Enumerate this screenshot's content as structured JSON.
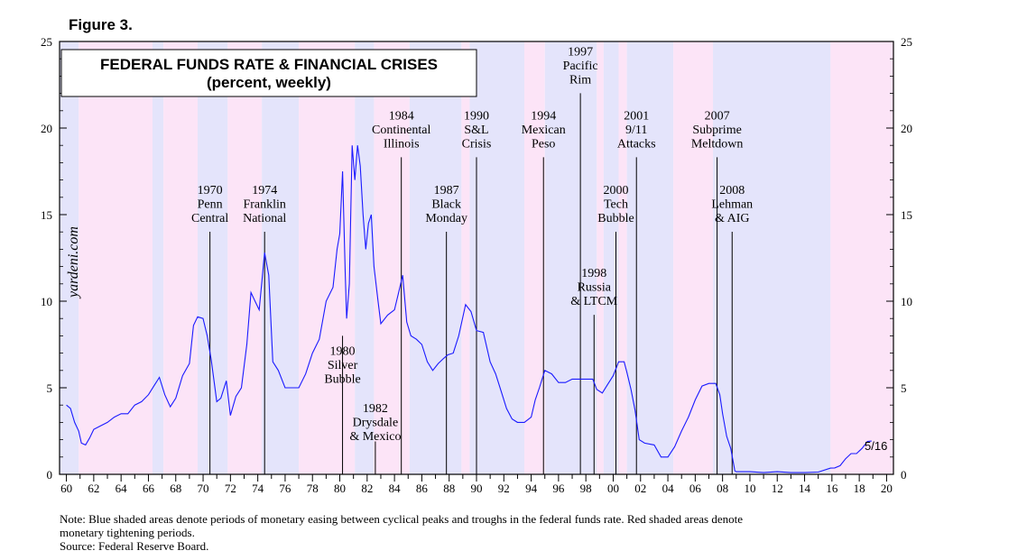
{
  "figure_label": "Figure 3.",
  "chart_data": {
    "type": "line",
    "title": "FEDERAL FUNDS RATE & FINANCIAL CRISES",
    "subtitle": "(percent, weekly)",
    "xlabel": "",
    "ylabel": "",
    "xlim": [
      1959.5,
      2020.5
    ],
    "ylim": [
      0,
      25
    ],
    "y_ticks": [
      0,
      5,
      10,
      15,
      20,
      25
    ],
    "x_tick_labels": [
      "60",
      "62",
      "64",
      "66",
      "68",
      "70",
      "72",
      "74",
      "76",
      "78",
      "80",
      "82",
      "84",
      "86",
      "88",
      "90",
      "92",
      "94",
      "96",
      "98",
      "00",
      "02",
      "04",
      "06",
      "08",
      "10",
      "12",
      "14",
      "16",
      "18",
      "20"
    ],
    "x_tick_values": [
      1960,
      1962,
      1964,
      1966,
      1968,
      1970,
      1972,
      1974,
      1976,
      1978,
      1980,
      1982,
      1984,
      1986,
      1988,
      1990,
      1992,
      1994,
      1996,
      1998,
      2000,
      2002,
      2004,
      2006,
      2008,
      2010,
      2012,
      2014,
      2016,
      2018,
      2020
    ],
    "grid": false,
    "end_label": "5/16",
    "series": [
      {
        "color": "#1a1aff",
        "x": [
          1960.0,
          1960.3,
          1960.6,
          1960.9,
          1961.1,
          1961.4,
          1961.7,
          1962.0,
          1962.5,
          1963.0,
          1963.5,
          1964.0,
          1964.5,
          1965.0,
          1965.5,
          1966.0,
          1966.4,
          1966.8,
          1967.2,
          1967.6,
          1968.0,
          1968.5,
          1969.0,
          1969.3,
          1969.6,
          1970.0,
          1970.3,
          1970.6,
          1971.0,
          1971.3,
          1971.7,
          1972.0,
          1972.4,
          1972.8,
          1973.2,
          1973.5,
          1973.8,
          1974.1,
          1974.5,
          1974.8,
          1975.1,
          1975.5,
          1976.0,
          1976.5,
          1977.0,
          1977.5,
          1978.0,
          1978.5,
          1979.0,
          1979.5,
          1979.8,
          1980.0,
          1980.2,
          1980.4,
          1980.5,
          1980.7,
          1980.9,
          1981.1,
          1981.3,
          1981.5,
          1981.7,
          1981.9,
          1982.1,
          1982.3,
          1982.5,
          1982.8,
          1983.0,
          1983.5,
          1984.0,
          1984.3,
          1984.6,
          1984.9,
          1985.2,
          1985.6,
          1986.0,
          1986.4,
          1986.8,
          1987.2,
          1987.6,
          1987.9,
          1988.3,
          1988.7,
          1989.2,
          1989.6,
          1990.0,
          1990.5,
          1991.0,
          1991.4,
          1991.8,
          1992.2,
          1992.6,
          1993.0,
          1993.5,
          1994.0,
          1994.3,
          1994.6,
          1995.0,
          1995.5,
          1996.0,
          1996.5,
          1997.0,
          1997.5,
          1998.0,
          1998.5,
          1998.8,
          1999.2,
          1999.6,
          2000.0,
          2000.4,
          2000.8,
          2001.0,
          2001.3,
          2001.6,
          2001.9,
          2002.3,
          2003.0,
          2003.5,
          2004.0,
          2004.5,
          2005.0,
          2005.5,
          2006.0,
          2006.5,
          2007.0,
          2007.5,
          2007.8,
          2008.0,
          2008.3,
          2008.6,
          2008.9,
          2009.0,
          2010.0,
          2011.0,
          2012.0,
          2013.0,
          2014.0,
          2015.0,
          2015.9,
          2016.2,
          2016.6,
          2017.0,
          2017.4,
          2017.8,
          2018.2,
          2018.6,
          2018.9
        ],
        "y": [
          4.0,
          3.8,
          3.0,
          2.5,
          1.8,
          1.7,
          2.1,
          2.6,
          2.8,
          3.0,
          3.3,
          3.5,
          3.5,
          4.0,
          4.2,
          4.6,
          5.1,
          5.6,
          4.6,
          3.9,
          4.4,
          5.7,
          6.4,
          8.6,
          9.1,
          9.0,
          8.0,
          6.6,
          4.2,
          4.4,
          5.4,
          3.4,
          4.5,
          5.0,
          7.5,
          10.5,
          10.0,
          9.5,
          12.8,
          11.5,
          6.5,
          6.0,
          5.0,
          5.0,
          5.0,
          5.8,
          7.0,
          7.8,
          10.0,
          10.8,
          13.0,
          13.9,
          17.5,
          11.5,
          9.0,
          11.0,
          19.0,
          17.0,
          19.0,
          17.8,
          15.0,
          13.0,
          14.5,
          15.0,
          12.0,
          10.0,
          8.7,
          9.2,
          9.5,
          10.5,
          11.5,
          8.8,
          8.0,
          7.8,
          7.5,
          6.5,
          6.0,
          6.4,
          6.7,
          6.9,
          7.0,
          8.0,
          9.8,
          9.4,
          8.3,
          8.2,
          6.5,
          5.8,
          4.8,
          3.8,
          3.2,
          3.0,
          3.0,
          3.3,
          4.3,
          5.0,
          6.0,
          5.8,
          5.3,
          5.3,
          5.5,
          5.5,
          5.5,
          5.5,
          4.9,
          4.7,
          5.2,
          5.7,
          6.5,
          6.5,
          5.9,
          4.9,
          3.7,
          2.0,
          1.8,
          1.7,
          1.0,
          1.0,
          1.6,
          2.5,
          3.3,
          4.3,
          5.1,
          5.25,
          5.25,
          4.6,
          3.5,
          2.2,
          1.5,
          0.2,
          0.15,
          0.15,
          0.1,
          0.15,
          0.1,
          0.1,
          0.13,
          0.36,
          0.37,
          0.5,
          0.9,
          1.2,
          1.2,
          1.5,
          1.9,
          1.92
        ]
      }
    ],
    "shaded_periods": [
      {
        "start": 1959.5,
        "end": 1960.9,
        "type": "easing"
      },
      {
        "start": 1960.9,
        "end": 1966.3,
        "type": "tightening"
      },
      {
        "start": 1966.3,
        "end": 1967.1,
        "type": "easing"
      },
      {
        "start": 1967.1,
        "end": 1969.6,
        "type": "tightening"
      },
      {
        "start": 1969.6,
        "end": 1971.8,
        "type": "easing"
      },
      {
        "start": 1971.8,
        "end": 1974.3,
        "type": "tightening"
      },
      {
        "start": 1974.3,
        "end": 1977.0,
        "type": "easing"
      },
      {
        "start": 1977.0,
        "end": 1981.1,
        "type": "tightening"
      },
      {
        "start": 1981.1,
        "end": 1982.5,
        "type": "easing"
      },
      {
        "start": 1982.5,
        "end": 1985.1,
        "type": "tightening"
      },
      {
        "start": 1985.1,
        "end": 1988.9,
        "type": "easing"
      },
      {
        "start": 1988.9,
        "end": 1989.5,
        "type": "tightening"
      },
      {
        "start": 1989.5,
        "end": 1993.5,
        "type": "easing"
      },
      {
        "start": 1993.5,
        "end": 1995.0,
        "type": "tightening"
      },
      {
        "start": 1995.0,
        "end": 1998.8,
        "type": "easing"
      },
      {
        "start": 1998.8,
        "end": 1999.3,
        "type": "tightening"
      },
      {
        "start": 1999.3,
        "end": 2000.4,
        "type": "easing"
      },
      {
        "start": 2000.4,
        "end": 2001.0,
        "type": "tightening"
      },
      {
        "start": 2001.0,
        "end": 2004.4,
        "type": "easing"
      },
      {
        "start": 2004.4,
        "end": 2007.3,
        "type": "tightening"
      },
      {
        "start": 2007.3,
        "end": 2015.9,
        "type": "easing"
      },
      {
        "start": 2015.9,
        "end": 2020.5,
        "type": "tightening"
      }
    ],
    "events": [
      {
        "x": 1970.5,
        "label_lines": [
          "1970",
          "Penn",
          "Central"
        ],
        "label_y": 16.2
      },
      {
        "x": 1974.5,
        "label_lines": [
          "1974",
          "Franklin",
          "National"
        ],
        "label_y": 16.2
      },
      {
        "x": 1980.2,
        "label_lines": [
          "1980",
          "Silver",
          "Bubble"
        ],
        "label_y": 6.9,
        "line_to": 8.0
      },
      {
        "x": 1982.6,
        "label_lines": [
          "1982",
          "Drysdale",
          "& Mexico"
        ],
        "label_y": 3.6,
        "line_to": 1.9
      },
      {
        "x": 1984.5,
        "label_lines": [
          "1984",
          "Continental",
          "Illinois"
        ],
        "label_y": 20.5
      },
      {
        "x": 1987.8,
        "label_lines": [
          "1987",
          "Black",
          "Monday"
        ],
        "label_y": 16.2
      },
      {
        "x": 1990.0,
        "label_lines": [
          "1990",
          "S&L",
          "Crisis"
        ],
        "label_y": 20.5
      },
      {
        "x": 1994.9,
        "label_lines": [
          "1994",
          "Mexican",
          "Peso"
        ],
        "label_y": 20.5
      },
      {
        "x": 1997.6,
        "label_lines": [
          "1997",
          "Pacific",
          "Rim"
        ],
        "label_y": 24.2
      },
      {
        "x": 1998.6,
        "label_lines": [
          "1998",
          "Russia",
          "& LTCM"
        ],
        "label_y": 11.4
      },
      {
        "x": 2000.2,
        "label_lines": [
          "2000",
          "Tech",
          "Bubble"
        ],
        "label_y": 16.2
      },
      {
        "x": 2001.7,
        "label_lines": [
          "2001",
          "9/11",
          "Attacks"
        ],
        "label_y": 20.5
      },
      {
        "x": 2007.6,
        "label_lines": [
          "2007",
          "Subprime",
          "Meltdown"
        ],
        "label_y": 20.5
      },
      {
        "x": 2008.7,
        "label_lines": [
          "2008",
          "Lehman",
          "& AIG"
        ],
        "label_y": 16.2
      }
    ],
    "watermark": "yardeni.com",
    "colors": {
      "easing": "#e4e4fb",
      "tightening": "#fce4f7",
      "line": "#1a1aff"
    }
  },
  "notes": {
    "line1": "Note: Blue shaded areas denote periods of monetary easing between cyclical peaks and troughs in the federal funds rate. Red shaded areas denote",
    "line2": "monetary tightening periods.",
    "source": "Source: Federal Reserve Board."
  }
}
